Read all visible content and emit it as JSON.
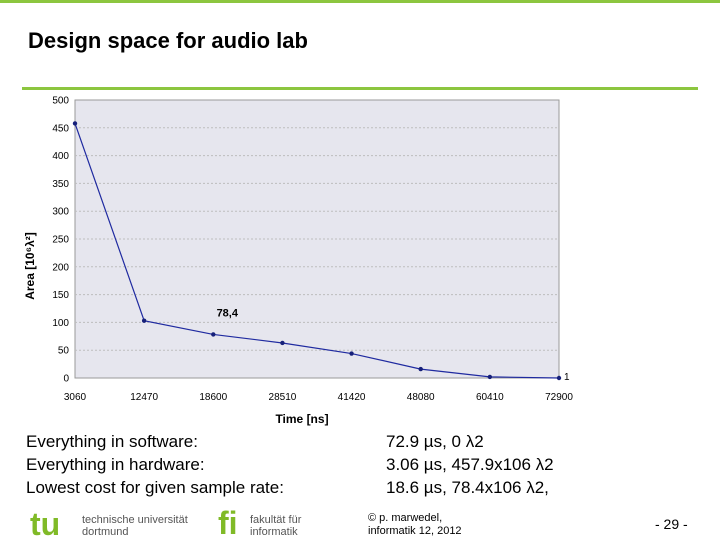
{
  "slide": {
    "title": "Design space for audio lab",
    "page_number": "- 29 -"
  },
  "colors": {
    "accent_green": "#8cc63f",
    "plot_background": "#e6e6ee",
    "series_line": "#1f2aa0",
    "series_marker": "#16207a"
  },
  "chart_data": {
    "type": "line",
    "title": "",
    "xlabel": "Time [ns]",
    "ylabel": "Area [10⁶λ²]",
    "categories": [
      "3060",
      "12470",
      "18600",
      "28510",
      "41420",
      "48080",
      "60410",
      "72900"
    ],
    "series": [
      {
        "values": [
          457.9,
          103,
          78.4,
          63,
          44,
          16,
          2,
          0
        ]
      }
    ],
    "ylim": [
      0,
      500
    ],
    "yticks": [
      0,
      50,
      100,
      150,
      200,
      250,
      300,
      350,
      400,
      450,
      500
    ],
    "grid": true,
    "annotations": [
      {
        "category_index": 2,
        "text": "78,4"
      }
    ],
    "end_marker_label": "1"
  },
  "notes": [
    {
      "label": "Everything in software:",
      "value": "72.9   µs,             0 λ2"
    },
    {
      "label": "Everything in hardware:",
      "value": "  3.06 µs, 457.9x106 λ2"
    },
    {
      "label": "Lowest cost for given sample rate:",
      "value": "18.6  µs,    78.4x106 λ2,"
    }
  ],
  "footer": {
    "tu_logo_lines": [
      "technische universität",
      "dortmund"
    ],
    "fi_logo_lines": [
      "fakultät für",
      "informatik"
    ],
    "copyright_lines": [
      "© p. marwedel,",
      "informatik 12,  2012"
    ]
  }
}
